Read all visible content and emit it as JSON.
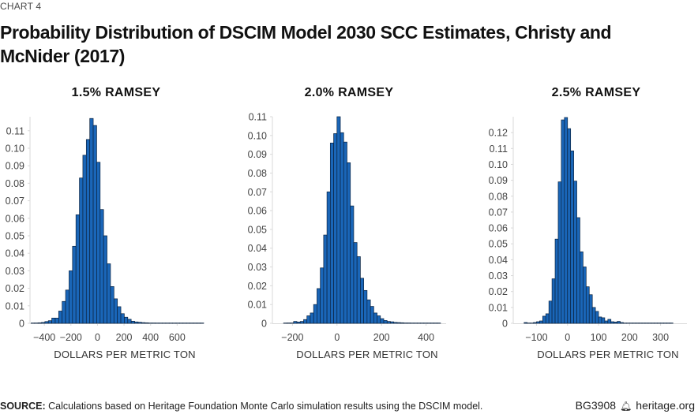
{
  "header": {
    "chart_number": "CHART 4",
    "title": "Probability Distribution of DSCIM Model 2030 SCC Estimates, Christy and McNider (2017)"
  },
  "footer": {
    "source_label": "SOURCE:",
    "source_text": " Calculations based on Heritage Foundation Monte Carlo simulation results using the DSCIM model.",
    "report_id": "BG3908",
    "bell_icon": "liberty-bell-icon",
    "site": "heritage.org"
  },
  "colors": {
    "bar_fill": "#1a66b8",
    "bar_stroke": "#0b2340",
    "axis": "#d9d9d9"
  },
  "chart_data": [
    {
      "type": "bar",
      "title": "1.5% RAMSEY",
      "xlabel": "DOLLARS PER METRIC TON",
      "ylabel": "",
      "xlim": [
        -508,
        800
      ],
      "ylim": [
        0,
        0.118
      ],
      "xticks": [
        -400,
        -200,
        0,
        200,
        400,
        600
      ],
      "xtick_labels": [
        "−400",
        "−200",
        "0",
        "200",
        "400",
        "600"
      ],
      "yticks": [
        0,
        0.01,
        0.02,
        0.03,
        0.04,
        0.05,
        0.06,
        0.07,
        0.08,
        0.09,
        0.1,
        0.11
      ],
      "ytick_labels": [
        "0",
        "0.01",
        "0.02",
        "0.03",
        "0.04",
        "0.05",
        "0.06",
        "0.07",
        "0.08",
        "0.09",
        "0.10",
        "0.11"
      ],
      "bin_start": -500,
      "bin_width": 26,
      "values": [
        0.0001,
        0.0002,
        0.0003,
        0.0005,
        0.001,
        0.0015,
        0.003,
        0.003,
        0.007,
        0.0125,
        0.019,
        0.03,
        0.044,
        0.062,
        0.083,
        0.096,
        0.105,
        0.117,
        0.113,
        0.092,
        0.065,
        0.05,
        0.034,
        0.021,
        0.014,
        0.0095,
        0.0055,
        0.0035,
        0.0023,
        0.0012,
        0.0008,
        0.0006,
        0.0004,
        0.0003,
        0.0002,
        0.0002,
        0.0001,
        0.0001,
        0.0001,
        0.0001,
        0.0001,
        0.0001,
        0.0001,
        0.0001,
        0.0001,
        0.0001,
        0.0001,
        0.0001,
        0.0001,
        0.0001
      ]
    },
    {
      "type": "bar",
      "title": "2.0% RAMSEY",
      "xlabel": "DOLLARS PER METRIC TON",
      "ylabel": "",
      "xlim": [
        -290,
        490
      ],
      "ylim": [
        0,
        0.11
      ],
      "xticks": [
        -200,
        0,
        200,
        400
      ],
      "xtick_labels": [
        "−200",
        "0",
        "200",
        "400"
      ],
      "yticks": [
        0,
        0.01,
        0.02,
        0.03,
        0.04,
        0.05,
        0.06,
        0.07,
        0.08,
        0.09,
        0.1,
        0.11
      ],
      "ytick_labels": [
        "0",
        "0.01",
        "0.02",
        "0.03",
        "0.04",
        "0.05",
        "0.06",
        "0.07",
        "0.08",
        "0.09",
        "0.10",
        "0.11"
      ],
      "bin_start": -240,
      "bin_width": 15,
      "values": [
        0.0001,
        0.0002,
        0.0002,
        0.001,
        0.0007,
        0.001,
        0.002,
        0.004,
        0.0055,
        0.01,
        0.0185,
        0.0295,
        0.047,
        0.07,
        0.096,
        0.101,
        0.11,
        0.1015,
        0.0965,
        0.0855,
        0.0625,
        0.043,
        0.0355,
        0.024,
        0.0175,
        0.0125,
        0.009,
        0.0055,
        0.004,
        0.0025,
        0.0015,
        0.001,
        0.0008,
        0.0005,
        0.0004,
        0.0003,
        0.0002,
        0.0002,
        0.0001,
        0.0001,
        0.0001,
        0.0001,
        0.0001,
        0.0001,
        0.0001,
        0.0001,
        0.0001
      ]
    },
    {
      "type": "bar",
      "title": "2.5% RAMSEY",
      "xlabel": "DOLLARS PER METRIC TON",
      "ylabel": "",
      "xlim": [
        -175,
        385
      ],
      "ylim": [
        0,
        0.13
      ],
      "xticks": [
        -100,
        0,
        100,
        200,
        300
      ],
      "xtick_labels": [
        "−100",
        "0",
        "100",
        "200",
        "300"
      ],
      "yticks": [
        0,
        0.01,
        0.02,
        0.03,
        0.04,
        0.05,
        0.06,
        0.07,
        0.08,
        0.09,
        0.1,
        0.11,
        0.12
      ],
      "ytick_labels": [
        "0",
        "0.01",
        "0.02",
        "0.03",
        "0.04",
        "0.05",
        "0.06",
        "0.07",
        "0.08",
        "0.09",
        "0.10",
        "0.11",
        "0.12"
      ],
      "bin_start": -140,
      "bin_width": 10,
      "values": [
        0.0005,
        0.0002,
        0.0001,
        0.0005,
        0.001,
        0.0015,
        0.0045,
        0.006,
        0.014,
        0.028,
        0.053,
        0.089,
        0.128,
        0.1295,
        0.1225,
        0.1085,
        0.0895,
        0.0665,
        0.045,
        0.0355,
        0.023,
        0.018,
        0.01,
        0.0075,
        0.004,
        0.0035,
        0.0015,
        0.0025,
        0.001,
        0.0008,
        0.0012,
        0.0005,
        0.0002,
        0.0002,
        0.0001,
        0.0001,
        0.0001,
        0.0001,
        0.0001,
        0.0001,
        0.0001,
        0.0001,
        0.0001,
        0.0001,
        0.0001,
        0.0001,
        0.0001,
        0.0001
      ]
    }
  ]
}
